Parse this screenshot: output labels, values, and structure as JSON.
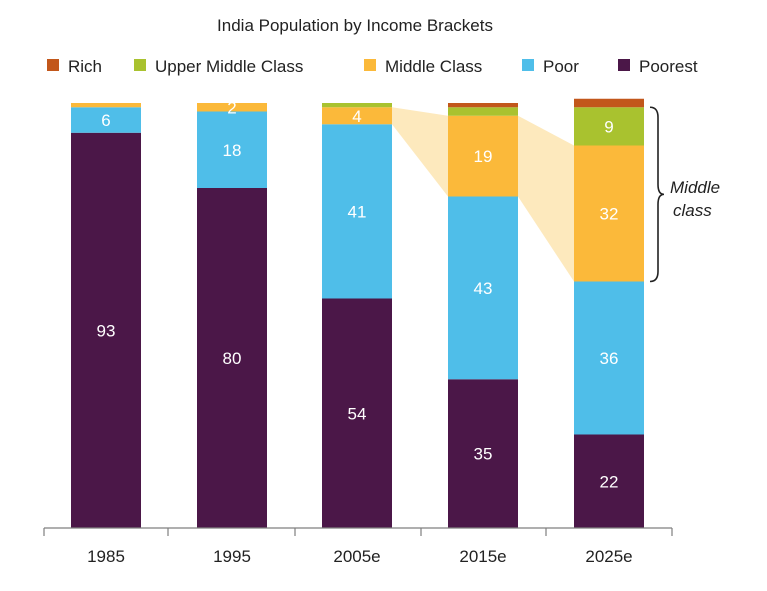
{
  "chart_data": {
    "type": "bar",
    "stacked": true,
    "title": "India Population by Income Brackets",
    "categories": [
      "1985",
      "1995",
      "2005e",
      "2015e",
      "2025e"
    ],
    "series": [
      {
        "name": "Poorest",
        "color": "#4b1748",
        "values": [
          93,
          80,
          54,
          35,
          22
        ]
      },
      {
        "name": "Poor",
        "color": "#4fbee9",
        "values": [
          6,
          18,
          41,
          43,
          36
        ]
      },
      {
        "name": "Middle Class",
        "color": "#fbb93a",
        "values": [
          1,
          2,
          4,
          19,
          32
        ]
      },
      {
        "name": "Upper Middle Class",
        "color": "#a9c22f",
        "values": [
          0,
          0,
          1,
          2,
          9
        ]
      },
      {
        "name": "Rich",
        "color": "#c2571b",
        "values": [
          0,
          0,
          0,
          1,
          2
        ]
      }
    ],
    "segment_labels": [
      [
        "93",
        "6",
        "",
        "",
        ""
      ],
      [
        "80",
        "18",
        "2",
        "",
        ""
      ],
      [
        "54",
        "41",
        "4",
        "",
        ""
      ],
      [
        "35",
        "43",
        "19",
        "",
        ""
      ],
      [
        "22",
        "36",
        "32",
        "9",
        ""
      ]
    ],
    "legend_order": [
      "Rich",
      "Upper Middle Class",
      "Middle Class",
      "Poor",
      "Poorest"
    ],
    "legend_placement": "top",
    "annotation": {
      "line1": "Middle",
      "line2": "class"
    },
    "ylim": [
      0,
      100
    ],
    "grid": false,
    "highlight_color": "#fde9bd"
  }
}
